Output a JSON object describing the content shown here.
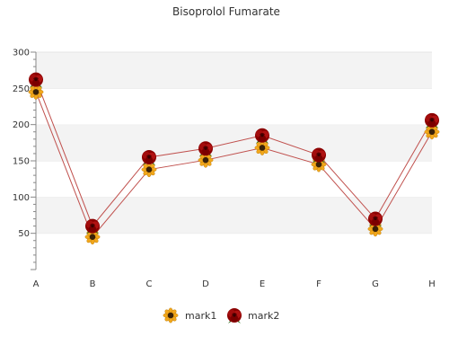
{
  "chart_data": {
    "type": "line",
    "title": "Bisoprolol Fumarate",
    "xlabel": "",
    "ylabel": "",
    "categories": [
      "A",
      "B",
      "C",
      "D",
      "E",
      "F",
      "G",
      "H"
    ],
    "y_ticks": [
      "50",
      "100",
      "150",
      "200",
      "250",
      "300"
    ],
    "ylim": [
      0,
      300
    ],
    "grid": "alternating horizontal bands",
    "legend_position": "bottom-center",
    "series": [
      {
        "name": "mark1",
        "marker": "sunflower-icon",
        "color": "#c0504d",
        "values": [
          245,
          45,
          138,
          151,
          168,
          145,
          56,
          190
        ]
      },
      {
        "name": "mark2",
        "marker": "rose-icon",
        "color": "#c0504d",
        "values": [
          262,
          60,
          155,
          167,
          185,
          158,
          70,
          206
        ]
      }
    ]
  }
}
